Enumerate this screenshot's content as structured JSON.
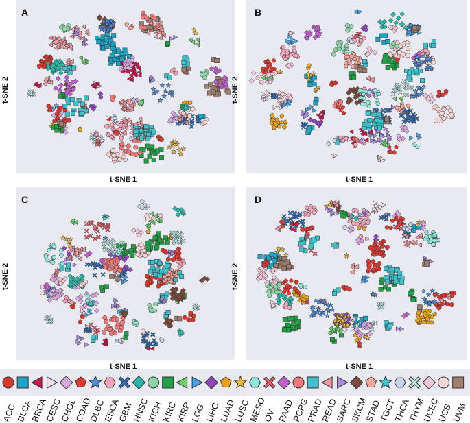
{
  "panels": [
    {
      "label": "A",
      "xlabel": "t-SNE 1",
      "ylabel": "t-SNE 2"
    },
    {
      "label": "B",
      "xlabel": "t-SNE 1",
      "ylabel": "t-SNE 2"
    },
    {
      "label": "C",
      "xlabel": "t-SNE 1",
      "ylabel": "t-SNE 2"
    },
    {
      "label": "D",
      "xlabel": "t-SNE 1",
      "ylabel": "t-SNE 2"
    }
  ],
  "chart_data": {
    "type": "scatter",
    "title": "",
    "xlabel": "t-SNE 1",
    "ylabel": "t-SNE 2",
    "grid": false,
    "legend_position": "bottom",
    "series": [
      {
        "name": "ACC",
        "color": "#d6372e",
        "marker": "circle"
      },
      {
        "name": "BLCA",
        "color": "#1aa5c5",
        "marker": "square"
      },
      {
        "name": "BRCA",
        "color": "#d2174d",
        "marker": "triangle-left"
      },
      {
        "name": "CESC",
        "color": "#f7dfe7",
        "marker": "triangle-right"
      },
      {
        "name": "CHOL",
        "color": "#d9a6de",
        "marker": "diamond"
      },
      {
        "name": "COAD",
        "color": "#e4382d",
        "marker": "pentagon"
      },
      {
        "name": "DLBC",
        "color": "#4e8fe0",
        "marker": "star"
      },
      {
        "name": "ESCA",
        "color": "#f4a3b8",
        "marker": "hexagon"
      },
      {
        "name": "GBM",
        "color": "#2e6db5",
        "marker": "x"
      },
      {
        "name": "HNSC",
        "color": "#2bb6a5",
        "marker": "diamond"
      },
      {
        "name": "KICH",
        "color": "#8fd5a6",
        "marker": "circle"
      },
      {
        "name": "KIRC",
        "color": "#22a048",
        "marker": "square"
      },
      {
        "name": "KIRP",
        "color": "#6fd070",
        "marker": "triangle-left"
      },
      {
        "name": "LGG",
        "color": "#49a2e6",
        "marker": "triangle-right"
      },
      {
        "name": "LIHC",
        "color": "#8e46b9",
        "marker": "diamond"
      },
      {
        "name": "LUAD",
        "color": "#e9a11a",
        "marker": "pentagon"
      },
      {
        "name": "LUSC",
        "color": "#f0b73a",
        "marker": "star"
      },
      {
        "name": "MESO",
        "color": "#8fe6dc",
        "marker": "hexagon"
      },
      {
        "name": "OV",
        "color": "#e85c6a",
        "marker": "x"
      },
      {
        "name": "PAAD",
        "color": "#be5fcd",
        "marker": "diamond"
      },
      {
        "name": "PCPG",
        "color": "#f07a7a",
        "marker": "circle"
      },
      {
        "name": "PRAD",
        "color": "#3ec1cc",
        "marker": "square"
      },
      {
        "name": "READ",
        "color": "#f59aa0",
        "marker": "triangle-left"
      },
      {
        "name": "SARC",
        "color": "#a98be0",
        "marker": "triangle-right"
      },
      {
        "name": "SKCM",
        "color": "#7a4a3a",
        "marker": "diamond"
      },
      {
        "name": "STAD",
        "color": "#f8a59a",
        "marker": "pentagon"
      },
      {
        "name": "TGCT",
        "color": "#44c3d0",
        "marker": "star"
      },
      {
        "name": "THCA",
        "color": "#c7d4ea",
        "marker": "hexagon"
      },
      {
        "name": "THYM",
        "color": "#bfe6e6",
        "marker": "x"
      },
      {
        "name": "UCEC",
        "color": "#f4c5d7",
        "marker": "diamond"
      },
      {
        "name": "UCS",
        "color": "#fbd5d5",
        "marker": "circle"
      },
      {
        "name": "UVM",
        "color": "#a07f6f",
        "marker": "square"
      }
    ]
  }
}
